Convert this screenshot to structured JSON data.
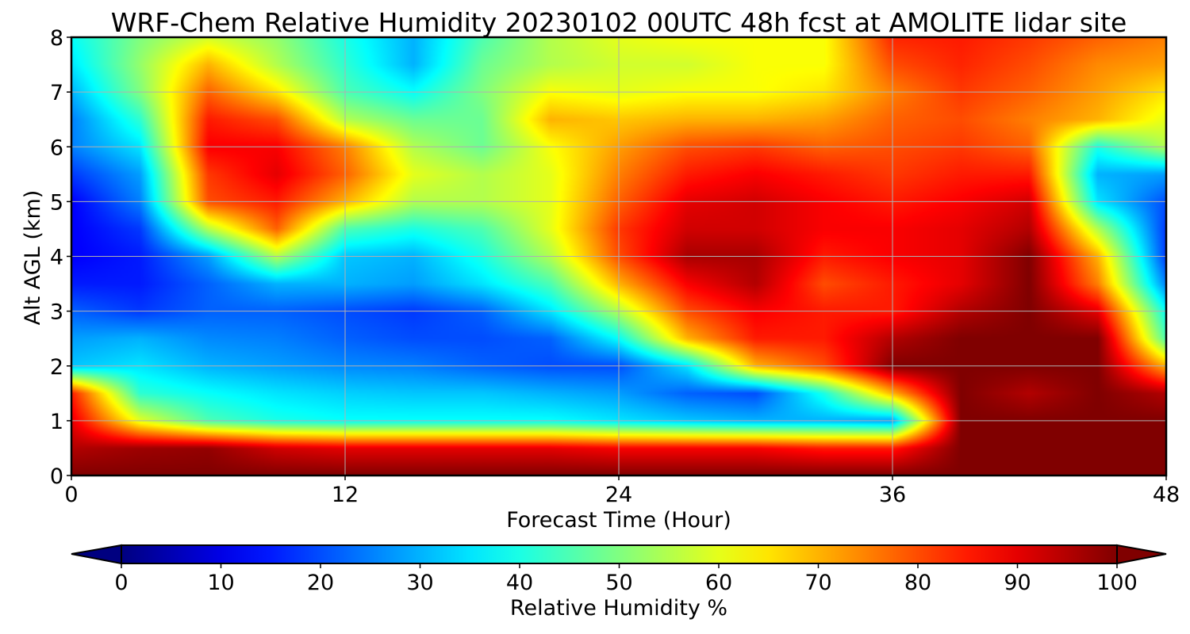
{
  "chart_data": {
    "type": "heatmap",
    "title": "WRF-Chem Relative Humidity 20230102 00UTC 48h fcst at AMOLITE lidar site",
    "xlabel": "Forecast Time (Hour)",
    "ylabel": "Alt AGL (km)",
    "xlim": [
      0,
      48
    ],
    "ylim": [
      0,
      8
    ],
    "x_ticks": [
      0,
      12,
      24,
      36,
      48
    ],
    "y_ticks": [
      0,
      1,
      2,
      3,
      4,
      5,
      6,
      7,
      8
    ],
    "grid": true,
    "colormap": "jet",
    "colorbar": {
      "label": "Relative Humidity %",
      "range": [
        0,
        100
      ],
      "ticks": [
        0,
        10,
        20,
        30,
        40,
        50,
        60,
        70,
        80,
        90,
        100
      ],
      "extend": "both",
      "orientation": "horizontal"
    },
    "x": [
      0,
      3,
      6,
      9,
      12,
      15,
      18,
      21,
      24,
      27,
      30,
      33,
      36,
      39,
      42,
      45,
      48
    ],
    "y": [
      0,
      0.5,
      1,
      1.5,
      2,
      2.5,
      3,
      3.5,
      4,
      4.5,
      5,
      5.5,
      6,
      6.5,
      7,
      7.5,
      8
    ],
    "z": [
      [
        100,
        100,
        100,
        100,
        100,
        100,
        100,
        100,
        100,
        100,
        100,
        100,
        100,
        100,
        100,
        100,
        100
      ],
      [
        95,
        97,
        98,
        92,
        90,
        90,
        90,
        90,
        88,
        88,
        88,
        85,
        85,
        100,
        100,
        100,
        100
      ],
      [
        90,
        60,
        45,
        40,
        38,
        38,
        38,
        38,
        35,
        32,
        30,
        30,
        28,
        100,
        100,
        100,
        100
      ],
      [
        85,
        42,
        38,
        35,
        33,
        32,
        32,
        30,
        28,
        22,
        20,
        40,
        70,
        100,
        95,
        100,
        95
      ],
      [
        32,
        35,
        30,
        28,
        26,
        25,
        22,
        20,
        20,
        35,
        70,
        80,
        100,
        100,
        100,
        100,
        70
      ],
      [
        28,
        30,
        26,
        25,
        22,
        20,
        20,
        22,
        38,
        70,
        85,
        85,
        95,
        100,
        100,
        100,
        45
      ],
      [
        22,
        18,
        22,
        22,
        20,
        18,
        22,
        35,
        55,
        80,
        88,
        85,
        85,
        95,
        100,
        90,
        38
      ],
      [
        15,
        15,
        22,
        30,
        30,
        28,
        35,
        45,
        70,
        88,
        95,
        80,
        85,
        90,
        100,
        75,
        25
      ],
      [
        12,
        15,
        28,
        55,
        32,
        30,
        40,
        55,
        80,
        96,
        96,
        85,
        88,
        90,
        100,
        70,
        18
      ],
      [
        12,
        18,
        55,
        78,
        45,
        40,
        45,
        60,
        82,
        92,
        92,
        88,
        88,
        90,
        95,
        55,
        18
      ],
      [
        12,
        25,
        80,
        85,
        70,
        55,
        55,
        60,
        78,
        90,
        92,
        88,
        85,
        88,
        92,
        35,
        20
      ],
      [
        18,
        28,
        82,
        90,
        78,
        60,
        55,
        60,
        75,
        85,
        88,
        85,
        82,
        85,
        85,
        30,
        28
      ],
      [
        25,
        35,
        88,
        88,
        75,
        55,
        48,
        62,
        72,
        80,
        82,
        78,
        80,
        82,
        78,
        40,
        55
      ],
      [
        25,
        42,
        85,
        80,
        55,
        48,
        48,
        70,
        68,
        70,
        70,
        72,
        78,
        80,
        75,
        70,
        60
      ],
      [
        30,
        50,
        78,
        65,
        45,
        38,
        50,
        62,
        60,
        62,
        62,
        65,
        75,
        82,
        78,
        72,
        65
      ],
      [
        35,
        52,
        70,
        55,
        42,
        30,
        48,
        55,
        58,
        58,
        62,
        62,
        80,
        84,
        80,
        74,
        72
      ],
      [
        38,
        50,
        58,
        52,
        40,
        30,
        45,
        55,
        60,
        62,
        62,
        62,
        84,
        85,
        82,
        78,
        75
      ]
    ]
  }
}
